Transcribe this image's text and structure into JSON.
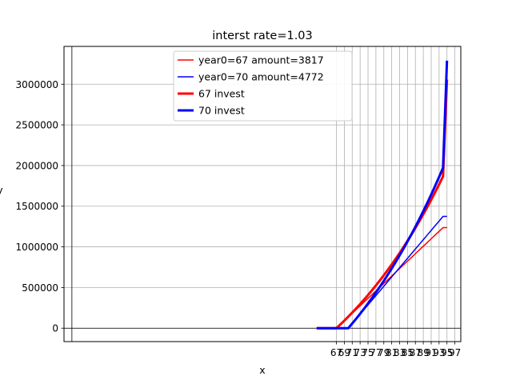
{
  "chart_data": {
    "type": "line",
    "title": "interst rate=1.03",
    "xlabel": "x",
    "ylabel": "y",
    "xlim": [
      -2,
      98.5
    ],
    "ylim": [
      -165000,
      3465000
    ],
    "x_ticks": [
      67,
      69,
      71,
      73,
      75,
      77,
      79,
      81,
      83,
      85,
      87,
      89,
      91,
      93,
      95,
      97
    ],
    "x_tick_labels": [
      "67",
      "69",
      "71",
      "73",
      "75",
      "77",
      "79",
      "81",
      "83",
      "85",
      "87",
      "89",
      "91",
      "93",
      "95",
      "97"
    ],
    "y_ticks": [
      0,
      500000,
      1000000,
      1500000,
      2000000,
      2500000,
      3000000
    ],
    "y_tick_labels": [
      "0",
      "500000",
      "1000000",
      "1500000",
      "2000000",
      "2500000",
      "3000000"
    ],
    "reference_lines": {
      "vertical_x": 0,
      "horizontal_y": 0
    },
    "grid": true,
    "legend_placement": "upper-center",
    "series": [
      {
        "name": "year0=67 amount=3817",
        "color": "#ff0000",
        "linewidth": "thin",
        "x": [
          62,
          63,
          64,
          65,
          66,
          67,
          68,
          69,
          70,
          71,
          72,
          73,
          74,
          75,
          76,
          77,
          78,
          79,
          80,
          81,
          82,
          83,
          84,
          85,
          86,
          87,
          88,
          89,
          90,
          91,
          92,
          93,
          94,
          95
        ],
        "y": [
          0,
          0,
          0,
          0,
          0,
          0,
          45800,
          91600,
          137400,
          183200,
          229000,
          274800,
          320600,
          366400,
          412200,
          458000,
          503800,
          549600,
          595400,
          641200,
          687000,
          732800,
          778600,
          824400,
          870200,
          916000,
          961800,
          1007600,
          1053400,
          1099200,
          1145000,
          1190800,
          1236600,
          1236600
        ]
      },
      {
        "name": "year0=70 amount=4772",
        "color": "#0000ff",
        "linewidth": "thin",
        "x": [
          62,
          63,
          64,
          65,
          66,
          67,
          68,
          69,
          70,
          71,
          72,
          73,
          74,
          75,
          76,
          77,
          78,
          79,
          80,
          81,
          82,
          83,
          84,
          85,
          86,
          87,
          88,
          89,
          90,
          91,
          92,
          93,
          94,
          95
        ],
        "y": [
          0,
          0,
          0,
          0,
          0,
          0,
          0,
          0,
          0,
          57264,
          114528,
          171792,
          229056,
          286320,
          343584,
          400848,
          458112,
          515376,
          572640,
          629904,
          687168,
          744432,
          801696,
          858960,
          916224,
          973488,
          1030752,
          1088016,
          1145280,
          1202544,
          1259808,
          1317072,
          1374336,
          1374336
        ]
      },
      {
        "name": "67 invest",
        "color": "#ff0000",
        "linewidth": "thick",
        "x": [
          62,
          63,
          64,
          65,
          66,
          67,
          68,
          69,
          70,
          71,
          72,
          73,
          74,
          75,
          76,
          77,
          78,
          79,
          80,
          81,
          82,
          83,
          84,
          85,
          86,
          87,
          88,
          89,
          90,
          91,
          92,
          93,
          94,
          95
        ],
        "y": [
          0,
          0,
          0,
          0,
          0,
          0,
          45800,
          93000,
          141600,
          191600,
          243200,
          296400,
          351100,
          407500,
          465600,
          525400,
          587000,
          650500,
          715900,
          783200,
          852600,
          924000,
          997600,
          1073400,
          1151400,
          1231800,
          1314600,
          1399900,
          1487700,
          1578200,
          1671400,
          1767400,
          1866200,
          3057000
        ]
      },
      {
        "name": "70 invest",
        "color": "#0000ff",
        "linewidth": "thick",
        "x": [
          62,
          63,
          64,
          65,
          66,
          67,
          68,
          69,
          70,
          71,
          72,
          73,
          74,
          75,
          76,
          77,
          78,
          79,
          80,
          81,
          82,
          83,
          84,
          85,
          86,
          87,
          88,
          89,
          90,
          91,
          92,
          93,
          94,
          95
        ],
        "y": [
          0,
          0,
          0,
          0,
          0,
          0,
          0,
          0,
          0,
          57300,
          116300,
          177100,
          239700,
          304200,
          370600,
          439000,
          509500,
          582100,
          656900,
          733900,
          813200,
          894900,
          979000,
          1065700,
          1154900,
          1246800,
          1341500,
          1439000,
          1539400,
          1642800,
          1749300,
          1859000,
          1972000,
          3290000
        ]
      }
    ]
  }
}
